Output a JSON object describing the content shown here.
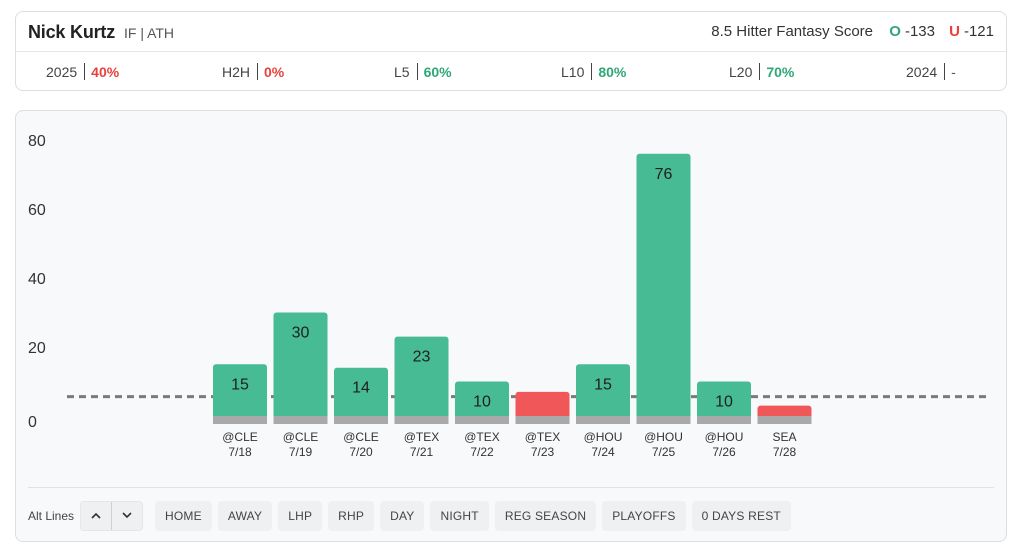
{
  "header": {
    "player_name": "Nick Kurtz",
    "player_meta": "IF | ATH",
    "score_label": "8.5 Hitter Fantasy Score",
    "over_letter": "O",
    "over_odds": "-133",
    "under_letter": "U",
    "under_odds": "-121"
  },
  "stats": [
    {
      "label": "2025",
      "value": "40%",
      "tone": "red"
    },
    {
      "label": "H2H",
      "value": "0%",
      "tone": "red"
    },
    {
      "label": "L5",
      "value": "60%",
      "tone": "green"
    },
    {
      "label": "L10",
      "value": "80%",
      "tone": "green"
    },
    {
      "label": "L20",
      "value": "70%",
      "tone": "green"
    },
    {
      "label": "2024",
      "value": "-",
      "tone": "gray"
    }
  ],
  "colors": {
    "over": "#47bb93",
    "under": "#ef5759",
    "base": "#a9a9a9",
    "line": "#7a7a7a"
  },
  "chart_data": {
    "type": "bar",
    "yticks": [
      "80",
      "60",
      "40",
      "20",
      "0"
    ],
    "ylim": [
      0,
      80
    ],
    "line_value": 8.5,
    "categories": [
      {
        "opp": "@CLE",
        "date": "7/18"
      },
      {
        "opp": "@CLE",
        "date": "7/19"
      },
      {
        "opp": "@CLE",
        "date": "7/20"
      },
      {
        "opp": "@TEX",
        "date": "7/21"
      },
      {
        "opp": "@TEX",
        "date": "7/22"
      },
      {
        "opp": "@TEX",
        "date": "7/23"
      },
      {
        "opp": "@HOU",
        "date": "7/24"
      },
      {
        "opp": "@HOU",
        "date": "7/25"
      },
      {
        "opp": "@HOU",
        "date": "7/26"
      },
      {
        "opp": "SEA",
        "date": "7/28"
      }
    ],
    "values": [
      15,
      30,
      14,
      23,
      10,
      7,
      15,
      76,
      10,
      3
    ],
    "labels": [
      "15",
      "30",
      "14",
      "23",
      "10",
      "",
      "15",
      "76",
      "10",
      ""
    ]
  },
  "filters": {
    "alt_label": "Alt Lines",
    "up_icon": "chevron-up-icon",
    "down_icon": "chevron-down-icon",
    "buttons": [
      "HOME",
      "AWAY",
      "LHP",
      "RHP",
      "DAY",
      "NIGHT",
      "REG SEASON",
      "PLAYOFFS",
      "0 DAYS REST"
    ]
  }
}
